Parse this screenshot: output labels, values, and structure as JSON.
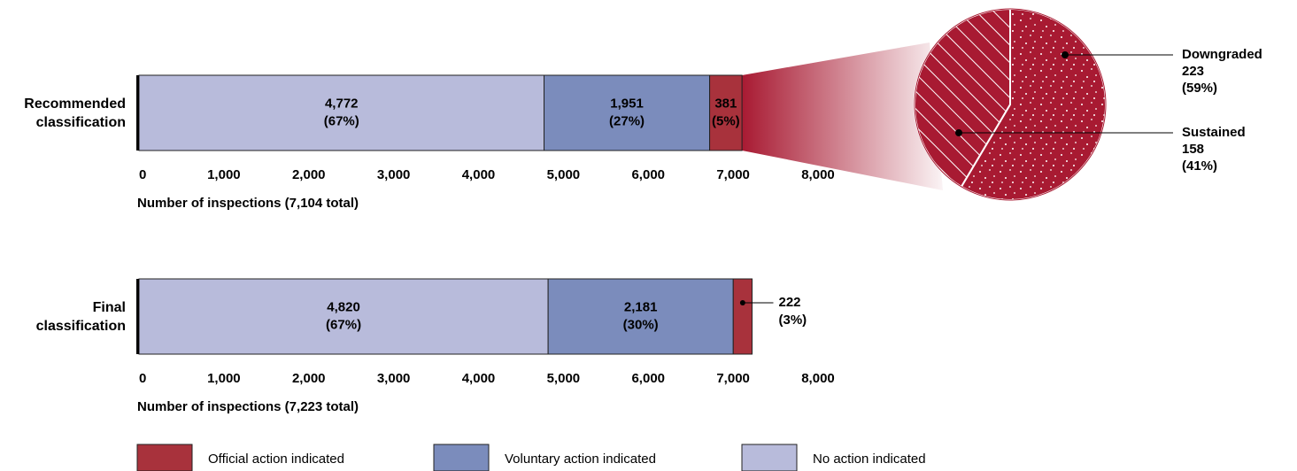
{
  "chart_data": [
    {
      "type": "stacked-bar",
      "category": "Recommended classification",
      "xlabel": "Number of inspections (7,104 total)",
      "xlim": [
        0,
        8000
      ],
      "xticks": [
        0,
        {
          "value": 1000,
          "label": "1,000"
        },
        {
          "value": 2000,
          "label": "2,000"
        },
        {
          "value": 3000,
          "label": "3,000"
        },
        {
          "value": 4000,
          "label": "4,000"
        },
        {
          "value": 5000,
          "label": "5,000"
        },
        {
          "value": 6000,
          "label": "6,000"
        },
        {
          "value": 7000,
          "label": "7,000"
        },
        {
          "value": 8000,
          "label": "8,000"
        }
      ],
      "series": [
        {
          "name": "No action indicated",
          "color": "#b8bbdb",
          "values": [
            4772
          ],
          "value_labels": [
            "4,772"
          ],
          "percent_labels": [
            "(67%)"
          ]
        },
        {
          "name": "Voluntary action indicated",
          "color": "#7b8cbc",
          "values": [
            1951
          ],
          "value_labels": [
            "1,951"
          ],
          "percent_labels": [
            "(27%)"
          ]
        },
        {
          "name": "Official action indicated",
          "color": "#a8323c",
          "values": [
            381
          ],
          "percent_labels": [
            "(5%)"
          ]
        }
      ]
    },
    {
      "type": "pie",
      "categories": [
        "Downgraded",
        "Sustained"
      ],
      "values": [
        223,
        158
      ],
      "percent_labels": [
        "(59%)",
        "(41%)"
      ],
      "color": "#a81a32",
      "patterns": [
        "dots",
        "hatch"
      ]
    },
    {
      "type": "stacked-bar",
      "category": "Final classification",
      "xlabel": "Number of inspections (7,223 total)",
      "xlim": [
        0,
        8000
      ],
      "xticks": [
        0,
        {
          "value": 1000,
          "label": "1,000"
        },
        {
          "value": 2000,
          "label": "2,000"
        },
        {
          "value": 3000,
          "label": "3,000"
        },
        {
          "value": 4000,
          "label": "4,000"
        },
        {
          "value": 5000,
          "label": "5,000"
        },
        {
          "value": 6000,
          "label": "6,000"
        },
        {
          "value": 7000,
          "label": "7,000"
        },
        {
          "value": 8000,
          "label": "8,000"
        }
      ],
      "series": [
        {
          "color": "#b8bbdb",
          "values": [
            4820
          ],
          "value_labels": [
            "4,820"
          ],
          "percent_labels": [
            "(67%)"
          ]
        },
        {
          "color": "#7b8cbc",
          "values": [
            2181
          ],
          "value_labels": [
            "2,181"
          ],
          "percent_labels": [
            "(30%)"
          ]
        },
        {
          "color": "#a8323c",
          "values": [
            222
          ],
          "percent_labels": [
            "(3%)"
          ]
        }
      ]
    }
  ]
}
